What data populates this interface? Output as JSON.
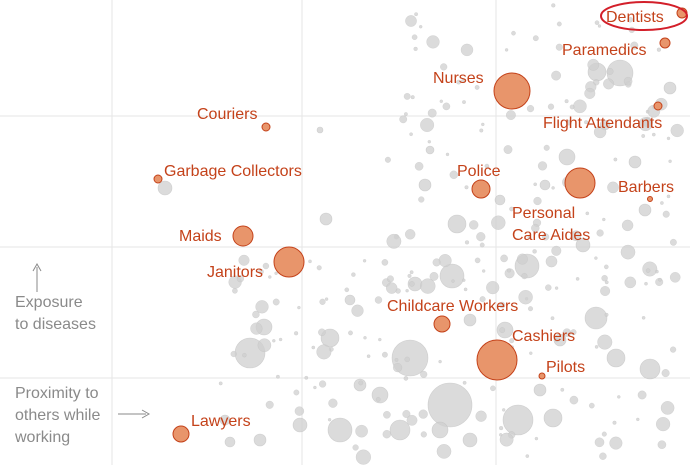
{
  "chart_data": {
    "type": "scatter",
    "title": "",
    "xlabel": "Proximity to others while working",
    "ylabel": "Exposure to diseases",
    "grid": true,
    "colors": {
      "highlight_fill": "#e8956b",
      "highlight_stroke": "#c4421a",
      "label": "#c4421a",
      "background_dot": "#cfcfcf",
      "circle_annotation": "#d31f2a",
      "axis_note": "#8a8a8a",
      "grid": "#e6e6e6"
    },
    "axis_notes": {
      "y_lines": [
        "Exposure",
        "to diseases"
      ],
      "x_lines": [
        "Proximity to",
        "others while",
        "working"
      ]
    },
    "highlighted": [
      {
        "label": "Dentists",
        "circled": true
      },
      {
        "label": "Paramedics"
      },
      {
        "label": "Nurses"
      },
      {
        "label": "Couriers"
      },
      {
        "label": "Flight Attendants"
      },
      {
        "label": "Garbage Collectors"
      },
      {
        "label": "Police"
      },
      {
        "label": "Barbers"
      },
      {
        "label": "Personal",
        "label2": "Care Aides"
      },
      {
        "label": "Maids"
      },
      {
        "label": "Janitors"
      },
      {
        "label": "Childcare Workers"
      },
      {
        "label": "Cashiers"
      },
      {
        "label": "Pilots"
      },
      {
        "label": "Lawyers"
      }
    ]
  }
}
